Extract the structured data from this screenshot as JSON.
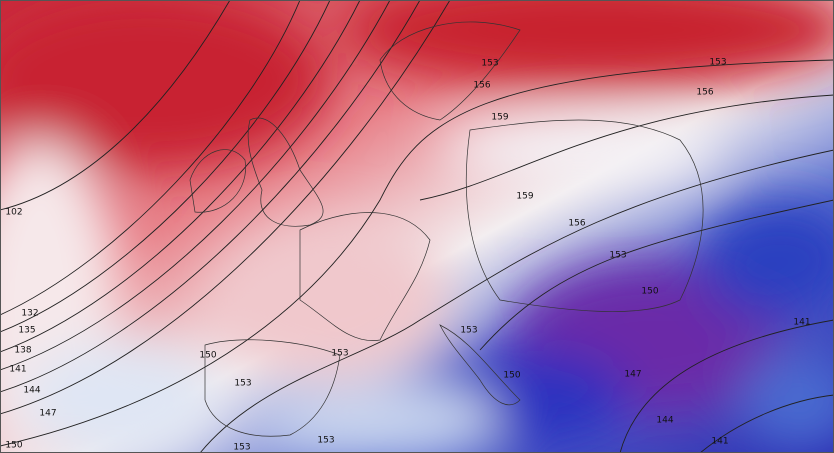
{
  "contour_labels": [
    153,
    153,
    156,
    156,
    159,
    159,
    156,
    153,
    150,
    153,
    150,
    153,
    153,
    150,
    147,
    141,
    144,
    141,
    153,
    153,
    102,
    132,
    135,
    138,
    141,
    144,
    147,
    150
  ]
}
